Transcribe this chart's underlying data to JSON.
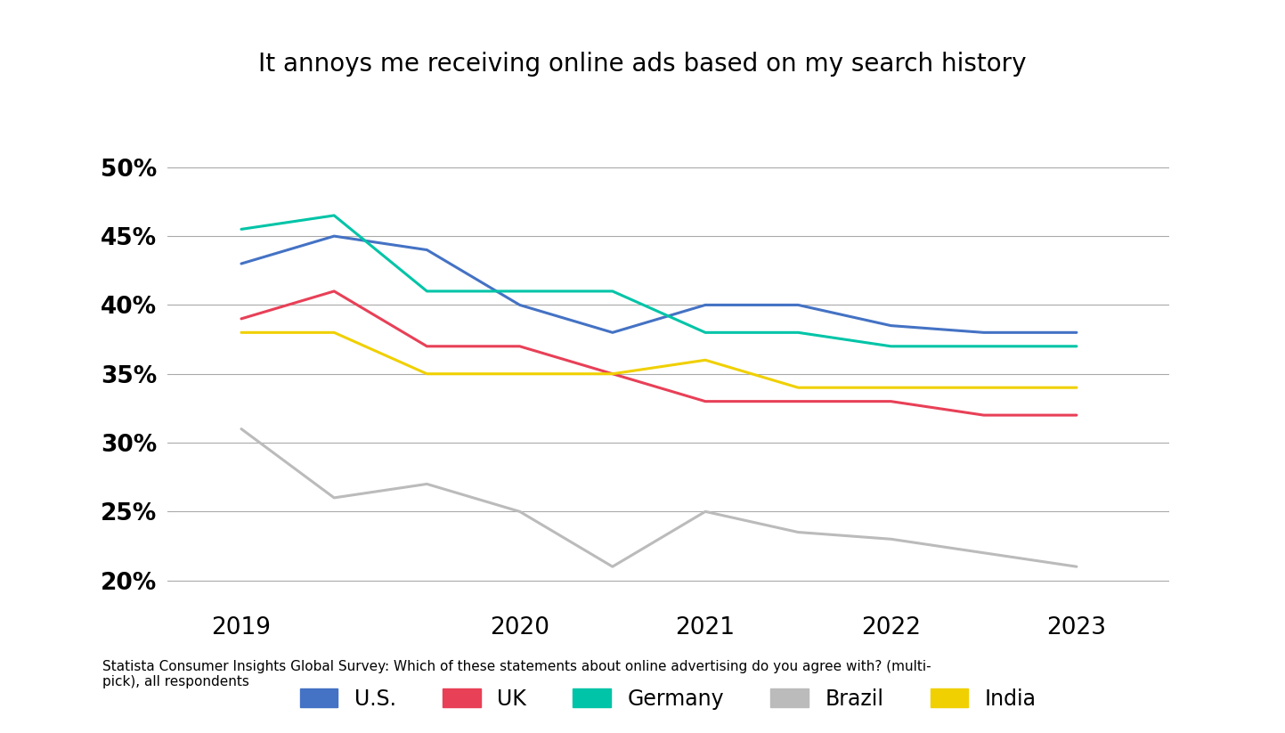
{
  "title": "It annoys me receiving online ads based on my search history",
  "x_positions": [
    0,
    0.5,
    1,
    1.5,
    2,
    2.5,
    3,
    3.5,
    4,
    4.5
  ],
  "series": {
    "U.S.": {
      "color": "#4472C4",
      "data": [
        0.43,
        0.45,
        0.44,
        0.4,
        0.38,
        0.4,
        0.4,
        0.385,
        0.38,
        0.38
      ]
    },
    "UK": {
      "color": "#E84057",
      "data": [
        0.39,
        0.41,
        0.37,
        0.37,
        0.35,
        0.33,
        0.33,
        0.33,
        0.32,
        0.32
      ]
    },
    "Germany": {
      "color": "#00C4A7",
      "data": [
        0.455,
        0.465,
        0.41,
        0.41,
        0.41,
        0.38,
        0.38,
        0.37,
        0.37,
        0.37
      ]
    },
    "Brazil": {
      "color": "#BBBBBB",
      "data": [
        0.31,
        0.26,
        0.27,
        0.25,
        0.21,
        0.25,
        0.235,
        0.23,
        0.22,
        0.21
      ]
    },
    "India": {
      "color": "#F0D000",
      "data": [
        0.38,
        0.38,
        0.35,
        0.35,
        0.35,
        0.36,
        0.34,
        0.34,
        0.34,
        0.34
      ]
    }
  },
  "ylim": [
    0.185,
    0.515
  ],
  "yticks": [
    0.2,
    0.25,
    0.3,
    0.35,
    0.4,
    0.45,
    0.5
  ],
  "x_tick_positions": [
    0,
    1.5,
    2.5,
    3.5,
    4.5
  ],
  "x_tick_labels": [
    "2019",
    "2020",
    "2021",
    "2022",
    "2023"
  ],
  "xlim": [
    -0.4,
    5.0
  ],
  "source_text": "Statista Consumer Insights Global Survey: Which of these statements about online advertising do you agree with? (multi-\npick), all respondents",
  "background_color": "#FFFFFF",
  "grid_color": "#AAAAAA",
  "line_width": 2.2
}
